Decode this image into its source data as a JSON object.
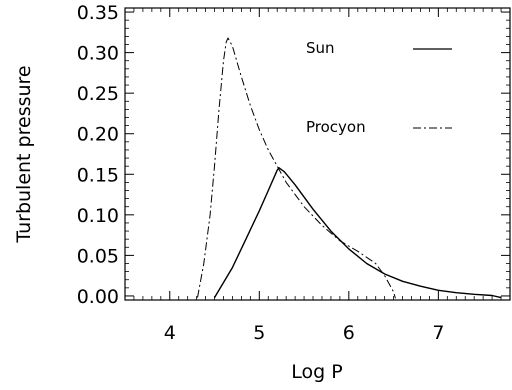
{
  "chart_data": {
    "type": "line",
    "title": "",
    "xlabel": "Log P",
    "ylabel": "Turbulent pressure",
    "xlim": [
      3.5,
      7.8
    ],
    "ylim": [
      -0.005,
      0.355
    ],
    "x_ticks": [
      {
        "value": 4,
        "label": "4"
      },
      {
        "value": 5,
        "label": "5"
      },
      {
        "value": 6,
        "label": "6"
      },
      {
        "value": 7,
        "label": "7"
      }
    ],
    "y_ticks": [
      {
        "value": 0.0,
        "label": "0.00"
      },
      {
        "value": 0.05,
        "label": "0.05"
      },
      {
        "value": 0.1,
        "label": "0.10"
      },
      {
        "value": 0.15,
        "label": "0.15"
      },
      {
        "value": 0.2,
        "label": "0.20"
      },
      {
        "value": 0.25,
        "label": "0.25"
      },
      {
        "value": 0.3,
        "label": "0.30"
      },
      {
        "value": 0.35,
        "label": "0.35"
      }
    ],
    "grid": false,
    "legend_position": "top-right",
    "series": [
      {
        "name": "Sun",
        "line_style": "solid",
        "color": "#000000",
        "points": [
          [
            4.5,
            -0.002
          ],
          [
            4.7,
            0.035
          ],
          [
            4.85,
            0.07
          ],
          [
            5.0,
            0.105
          ],
          [
            5.1,
            0.13
          ],
          [
            5.2,
            0.155
          ],
          [
            5.22,
            0.158
          ],
          [
            5.28,
            0.153
          ],
          [
            5.4,
            0.137
          ],
          [
            5.6,
            0.107
          ],
          [
            5.8,
            0.08
          ],
          [
            6.0,
            0.058
          ],
          [
            6.2,
            0.04
          ],
          [
            6.4,
            0.027
          ],
          [
            6.6,
            0.018
          ],
          [
            6.8,
            0.012
          ],
          [
            7.0,
            0.007
          ],
          [
            7.2,
            0.004
          ],
          [
            7.4,
            0.002
          ],
          [
            7.6,
            0.0005
          ],
          [
            7.7,
            -0.002
          ]
        ]
      },
      {
        "name": "Procyon",
        "line_style": "dash-dot",
        "color": "#000000",
        "points": [
          [
            4.31,
            -0.002
          ],
          [
            4.38,
            0.04
          ],
          [
            4.45,
            0.1
          ],
          [
            4.5,
            0.16
          ],
          [
            4.55,
            0.23
          ],
          [
            4.6,
            0.29
          ],
          [
            4.63,
            0.313
          ],
          [
            4.65,
            0.318
          ],
          [
            4.7,
            0.308
          ],
          [
            4.8,
            0.27
          ],
          [
            4.9,
            0.235
          ],
          [
            5.0,
            0.205
          ],
          [
            5.1,
            0.18
          ],
          [
            5.2,
            0.16
          ],
          [
            5.3,
            0.14
          ],
          [
            5.5,
            0.11
          ],
          [
            5.7,
            0.087
          ],
          [
            5.9,
            0.068
          ],
          [
            6.1,
            0.055
          ],
          [
            6.3,
            0.04
          ],
          [
            6.4,
            0.025
          ],
          [
            6.45,
            0.015
          ],
          [
            6.5,
            0.005
          ],
          [
            6.52,
            -0.003
          ]
        ]
      }
    ]
  }
}
